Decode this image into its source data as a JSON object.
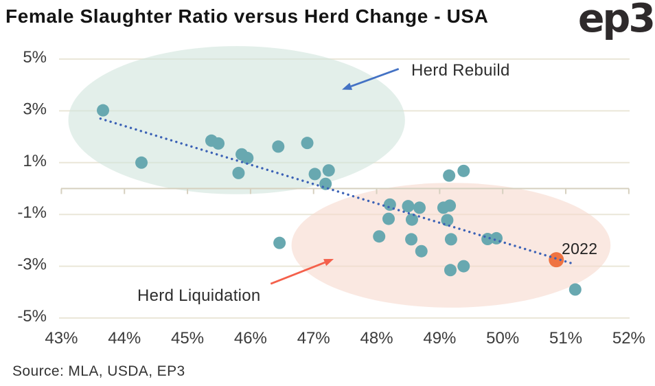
{
  "header": {
    "title": "Female Slaughter Ratio versus Herd Change - USA",
    "logo_text": "ep3"
  },
  "footer": {
    "source": "Source: MLA, USDA, EP3"
  },
  "colors": {
    "point": "#68a8b0",
    "highlight_point": "#ef7342",
    "trend": "#3c62b6",
    "gridline": "#eae6d8",
    "axis": "#d6d0bf",
    "tick_label": "#3b3b3b"
  },
  "chart_data": {
    "type": "scatter",
    "title": "Female Slaughter Ratio versus Herd Change - USA",
    "xlabel": "",
    "ylabel": "",
    "xlim": [
      43,
      52
    ],
    "ylim": [
      -5,
      5
    ],
    "grid": "horizontal",
    "legend": "none",
    "x_ticks": [
      "43%",
      "44%",
      "45%",
      "46%",
      "47%",
      "48%",
      "49%",
      "50%",
      "51%",
      "52%"
    ],
    "x_tick_values": [
      43,
      44,
      45,
      46,
      47,
      48,
      49,
      50,
      51,
      52
    ],
    "y_ticks": [
      "5%",
      "3%",
      "1%",
      "-1%",
      "-3%",
      "-5%"
    ],
    "y_tick_values": [
      5,
      3,
      1,
      -1,
      -3,
      -5
    ],
    "points": [
      [
        43.66,
        3.02
      ],
      [
        44.27,
        1.0
      ],
      [
        45.38,
        1.85
      ],
      [
        45.49,
        1.74
      ],
      [
        45.86,
        1.32
      ],
      [
        45.95,
        1.18
      ],
      [
        45.81,
        0.6
      ],
      [
        46.44,
        1.62
      ],
      [
        46.9,
        1.76
      ],
      [
        46.46,
        -2.1
      ],
      [
        47.02,
        0.56
      ],
      [
        47.24,
        0.7
      ],
      [
        47.19,
        0.18
      ],
      [
        48.04,
        -1.85
      ],
      [
        48.21,
        -0.62
      ],
      [
        48.19,
        -1.17
      ],
      [
        48.5,
        -0.68
      ],
      [
        48.68,
        -0.74
      ],
      [
        48.56,
        -1.2
      ],
      [
        48.55,
        -1.96
      ],
      [
        48.71,
        -2.42
      ],
      [
        49.06,
        -0.74
      ],
      [
        49.16,
        -0.66
      ],
      [
        49.12,
        -1.22
      ],
      [
        49.18,
        -1.96
      ],
      [
        49.15,
        0.5
      ],
      [
        49.38,
        0.68
      ],
      [
        49.17,
        -3.15
      ],
      [
        49.38,
        -3.0
      ],
      [
        49.76,
        -1.95
      ],
      [
        49.9,
        -1.92
      ],
      [
        51.15,
        -3.9
      ]
    ],
    "highlight": {
      "x": 50.85,
      "y": -2.75,
      "label": "2022"
    },
    "trendline": {
      "style": "dotted",
      "x1": 43.62,
      "y1": 2.7,
      "x2": 51.15,
      "y2": -2.93
    },
    "regions": [
      {
        "name": "herd-rebuild",
        "label": "Herd Rebuild",
        "fill": "#cee4db",
        "cx": 45.78,
        "cy": 2.64,
        "rx": 2.67,
        "ry": 2.86
      },
      {
        "name": "herd-liquidation",
        "label": "Herd Liquidation",
        "fill": "#f7d7cb",
        "cx": 49.18,
        "cy": -2.19,
        "rx": 2.53,
        "ry": 2.41
      }
    ],
    "arrows": [
      {
        "name": "herd-rebuild",
        "color": "#4472c4",
        "tail": [
          48.35,
          4.62
        ],
        "head": [
          47.45,
          3.82
        ]
      },
      {
        "name": "herd-liquidation",
        "color": "#f4604b",
        "tail": [
          46.32,
          -3.68
        ],
        "head": [
          47.32,
          -2.72
        ]
      }
    ]
  }
}
